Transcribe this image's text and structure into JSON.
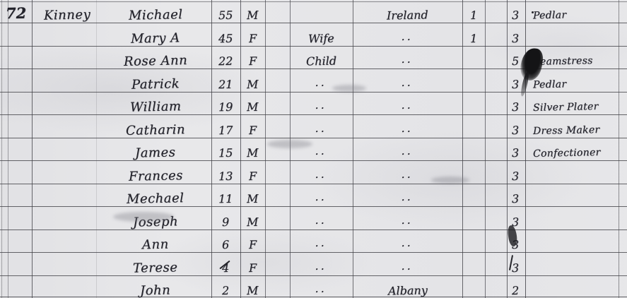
{
  "palette": {
    "paper": "#e8e8ea",
    "ink": "#22222a",
    "grid_line": "#3d3d42"
  },
  "record": {
    "family_number": "72",
    "surname": "Kinney",
    "rows": [
      {
        "number": "72",
        "surname": "Kinney",
        "given_name": "Michael",
        "age": "55",
        "sex": "M",
        "relation": "",
        "birthplace": "Ireland",
        "mark_a": "1",
        "mark_b": "3",
        "occupation": "Pedlar"
      },
      {
        "number": "",
        "surname": "",
        "given_name": "Mary A",
        "age": "45",
        "sex": "F",
        "relation": "Wife",
        "birthplace": "..",
        "mark_a": "1",
        "mark_b": "3",
        "occupation": ""
      },
      {
        "number": "",
        "surname": "",
        "given_name": "Rose Ann",
        "age": "22",
        "sex": "F",
        "relation": "Child",
        "birthplace": "..",
        "mark_a": "",
        "mark_b": "5",
        "occupation": "Seamstress",
        "ink_blot": true
      },
      {
        "number": "",
        "surname": "",
        "given_name": "Patrick",
        "age": "21",
        "sex": "M",
        "relation": "..",
        "birthplace": "..",
        "mark_a": "",
        "mark_b": "3",
        "occupation": "Pedlar"
      },
      {
        "number": "",
        "surname": "",
        "given_name": "William",
        "age": "19",
        "sex": "M",
        "relation": "..",
        "birthplace": "..",
        "mark_a": "",
        "mark_b": "3",
        "occupation": "Silver Plater"
      },
      {
        "number": "",
        "surname": "",
        "given_name": "Catharin",
        "age": "17",
        "sex": "F",
        "relation": "..",
        "birthplace": "..",
        "mark_a": "",
        "mark_b": "3",
        "occupation": "Dress Maker"
      },
      {
        "number": "",
        "surname": "",
        "given_name": "James",
        "age": "15",
        "sex": "M",
        "relation": "..",
        "birthplace": "..",
        "mark_a": "",
        "mark_b": "3",
        "occupation": "Confectioner"
      },
      {
        "number": "",
        "surname": "",
        "given_name": "Frances",
        "age": "13",
        "sex": "F",
        "relation": "..",
        "birthplace": "..",
        "mark_a": "",
        "mark_b": "3",
        "occupation": ""
      },
      {
        "number": "",
        "surname": "",
        "given_name": "Mechael",
        "age": "11",
        "sex": "M",
        "relation": "..",
        "birthplace": "..",
        "mark_a": "",
        "mark_b": "3",
        "occupation": ""
      },
      {
        "number": "",
        "surname": "",
        "given_name": "Joseph",
        "age": "9",
        "sex": "M",
        "relation": "..",
        "birthplace": "..",
        "mark_a": "",
        "mark_b": "3",
        "occupation": ""
      },
      {
        "number": "",
        "surname": "",
        "given_name": "Ann",
        "age": "6",
        "sex": "F",
        "relation": "..",
        "birthplace": "..",
        "mark_a": "",
        "mark_b": "3",
        "occupation": "",
        "mark_b_blotted": true
      },
      {
        "number": "",
        "surname": "",
        "given_name": "Terese",
        "age": "4",
        "sex": "F",
        "relation": "..",
        "birthplace": "..",
        "mark_a": "",
        "mark_b": "3",
        "occupation": "",
        "age_struck": true
      },
      {
        "number": "",
        "surname": "",
        "given_name": "John",
        "age": "2",
        "sex": "M",
        "relation": "..",
        "birthplace": "Albany",
        "mark_a": "",
        "mark_b": "2",
        "occupation": ""
      }
    ]
  }
}
